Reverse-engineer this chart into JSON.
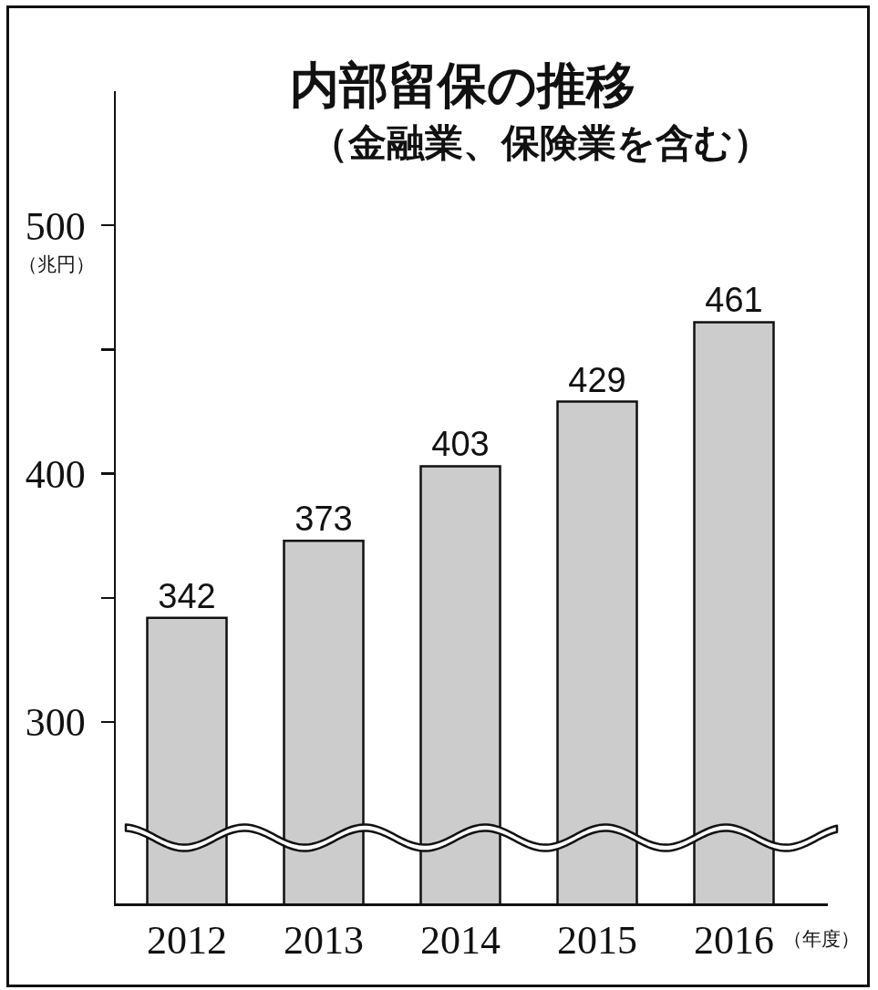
{
  "chart_data": {
    "type": "bar",
    "title": "内部留保の推移",
    "subtitle": "（金融業、保険業を含む）",
    "ylabel": "（兆円）",
    "xlabel": "（年度）",
    "categories": [
      "2012",
      "2013",
      "2014",
      "2015",
      "2016"
    ],
    "values": [
      342,
      373,
      403,
      429,
      461
    ],
    "color": "#cccccc",
    "data_labels": true,
    "ylim": [
      227,
      554
    ],
    "yticks": [
      300,
      {
        "value": 350,
        "label": null
      },
      400,
      {
        "value": 450,
        "label": null
      },
      500
    ],
    "grid": false
  }
}
